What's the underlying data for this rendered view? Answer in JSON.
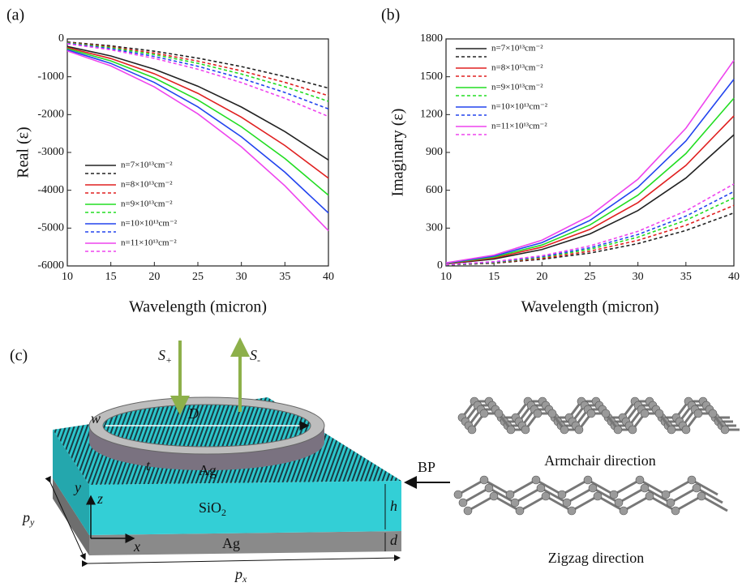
{
  "chart_data": [
    {
      "type": "line",
      "label": "(a)",
      "xlabel": "Wavelength (micron)",
      "ylabel": "Real (ε)",
      "x": [
        10,
        15,
        20,
        25,
        30,
        35,
        40
      ],
      "xlim": [
        10,
        40
      ],
      "xticks": [
        10,
        15,
        20,
        25,
        30,
        35,
        40
      ],
      "ylim": [
        -6000,
        0
      ],
      "yticks": [
        -6000,
        -5000,
        -4000,
        -3000,
        -2000,
        -1000,
        0
      ],
      "legend": "lower left",
      "series": [
        {
          "name": "n=7×10¹³cm⁻²",
          "color": "#222222",
          "values": [
            -200,
            -450,
            -800,
            -1250,
            -1800,
            -2450,
            -3200
          ],
          "dashed_values": [
            -81,
            -183,
            -325,
            -508,
            -731,
            -995,
            -1300
          ]
        },
        {
          "name": "n=8×10¹³cm⁻²",
          "color": "#e02020",
          "values": [
            -230,
            -518,
            -920,
            -1438,
            -2070,
            -2818,
            -3680
          ],
          "dashed_values": [
            -94,
            -211,
            -375,
            -586,
            -844,
            -1148,
            -1500
          ]
        },
        {
          "name": "n=9×10¹³cm⁻²",
          "color": "#22dd22",
          "values": [
            -258,
            -581,
            -1032,
            -1613,
            -2322,
            -3161,
            -4130
          ],
          "dashed_values": [
            -103,
            -232,
            -413,
            -645,
            -928,
            -1263,
            -1650
          ]
        },
        {
          "name": "n=10×10¹³cm⁻²",
          "color": "#2244ee",
          "values": [
            -288,
            -647,
            -1150,
            -1797,
            -2588,
            -3522,
            -4600
          ],
          "dashed_values": [
            -116,
            -260,
            -463,
            -723,
            -1041,
            -1416,
            -1850
          ]
        },
        {
          "name": "n=11×10¹³cm⁻²",
          "color": "#ee44ee",
          "values": [
            -317,
            -713,
            -1268,
            -1981,
            -2853,
            -3883,
            -5070
          ],
          "dashed_values": [
            -128,
            -288,
            -513,
            -801,
            -1153,
            -1570,
            -2050
          ]
        }
      ]
    },
    {
      "type": "line",
      "label": "(b)",
      "xlabel": "Wavelength (micron)",
      "ylabel": "Imaginary (ε)",
      "x": [
        10,
        15,
        20,
        25,
        30,
        35,
        40
      ],
      "xlim": [
        10,
        40
      ],
      "xticks": [
        10,
        15,
        20,
        25,
        30,
        35,
        40
      ],
      "ylim": [
        0,
        1800
      ],
      "yticks": [
        0,
        300,
        600,
        900,
        1200,
        1500,
        1800
      ],
      "legend": "upper left",
      "series": [
        {
          "name": "n=7×10¹³cm⁻²",
          "color": "#222222",
          "values": [
            16,
            55,
            130,
            254,
            439,
            697,
            1040
          ],
          "dashed_values": [
            7,
            22,
            53,
            102,
            177,
            281,
            420
          ]
        },
        {
          "name": "n=8×10¹³cm⁻²",
          "color": "#e02020",
          "values": [
            19,
            63,
            149,
            290,
            502,
            797,
            1190
          ],
          "dashed_values": [
            8,
            25,
            60,
            117,
            203,
            322,
            480
          ]
        },
        {
          "name": "n=9×10¹³cm⁻²",
          "color": "#22dd22",
          "values": [
            21,
            70,
            166,
            325,
            561,
            891,
            1330
          ],
          "dashed_values": [
            8,
            28,
            68,
            132,
            228,
            362,
            540
          ]
        },
        {
          "name": "n=10×10¹³cm⁻²",
          "color": "#2244ee",
          "values": [
            23,
            78,
            185,
            361,
            624,
            991,
            1480
          ],
          "dashed_values": [
            9,
            31,
            74,
            144,
            249,
            395,
            590
          ]
        },
        {
          "name": "n=11×10¹³cm⁻²",
          "color": "#ee44ee",
          "values": [
            25,
            86,
            204,
            398,
            688,
            1092,
            1630
          ],
          "dashed_values": [
            10,
            34,
            81,
            159,
            274,
            436,
            650
          ]
        }
      ]
    }
  ],
  "diagram": {
    "label": "(c)",
    "s_plus": {
      "main": "S",
      "sub": "+"
    },
    "s_minus": {
      "main": "S",
      "sub": "-"
    },
    "w": "w",
    "D": "D",
    "t": "t",
    "ring_material": "Ag",
    "spacer": {
      "main": "SiO",
      "sub": "2"
    },
    "substrate": "Ag",
    "h": "h",
    "d": "d",
    "axis_y": "y",
    "axis_z": "z",
    "axis_x": "x",
    "py": {
      "main": "p",
      "sub": "y"
    },
    "px": {
      "main": "p",
      "sub": "x"
    },
    "bp": "BP",
    "armchair": "Armchair direction",
    "zigzag": "Zigzag direction"
  }
}
